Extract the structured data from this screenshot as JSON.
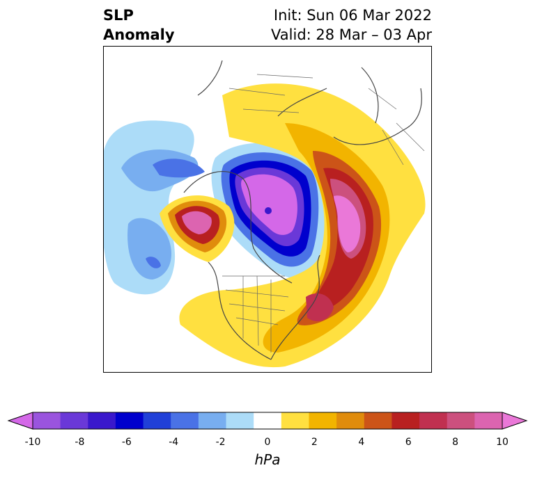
{
  "title": {
    "left_line1": "SLP",
    "left_line2": "Anomaly",
    "right_line1": "Init: Sun 06 Mar 2022",
    "right_line2": "Valid: 28 Mar – 03 Apr"
  },
  "colorbar": {
    "unit": "hPa",
    "ticks": [
      "-10",
      "-8",
      "-6",
      "-4",
      "-2",
      "0",
      "2",
      "4",
      "6",
      "8",
      "10"
    ],
    "colors": [
      "#d468e8",
      "#9a54de",
      "#6a38d8",
      "#3a18cc",
      "#0000cd",
      "#2040d8",
      "#4a72e6",
      "#78aef0",
      "#acdcf8",
      "#ffffff",
      "#ffe040",
      "#f2b400",
      "#e08c0c",
      "#cc5418",
      "#b82020",
      "#c03050",
      "#cc507e",
      "#dc64b0",
      "#ea78d8"
    ]
  },
  "map": {
    "projection": "north-polar-stereographic",
    "field": "sea-level-pressure-anomaly",
    "features": [
      "coastlines",
      "country-borders",
      "us-state-borders"
    ]
  }
}
